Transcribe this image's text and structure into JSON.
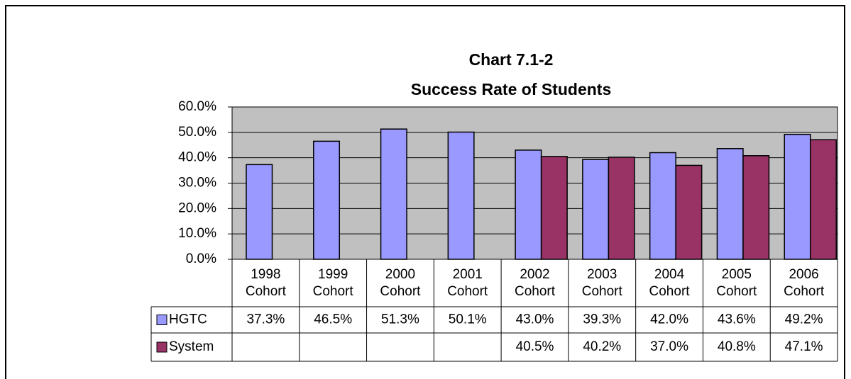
{
  "chart_data": {
    "type": "bar",
    "title": "Chart 7.1-2",
    "subtitle": "Success Rate of Students",
    "categories": [
      "1998 Cohort",
      "1999 Cohort",
      "2000 Cohort",
      "2001 Cohort",
      "2002 Cohort",
      "2003 Cohort",
      "2004 Cohort",
      "2005 Cohort",
      "2006 Cohort"
    ],
    "series": [
      {
        "name": "HGTC",
        "color": "#9999ff",
        "values": [
          37.3,
          46.5,
          51.3,
          50.1,
          43.0,
          39.3,
          42.0,
          43.6,
          49.2
        ],
        "value_labels": [
          "37.3%",
          "46.5%",
          "51.3%",
          "50.1%",
          "43.0%",
          "39.3%",
          "42.0%",
          "43.6%",
          "49.2%"
        ]
      },
      {
        "name": "System",
        "color": "#993366",
        "values": [
          null,
          null,
          null,
          null,
          40.5,
          40.2,
          37.0,
          40.8,
          47.1
        ],
        "value_labels": [
          null,
          null,
          null,
          null,
          "40.5%",
          "40.2%",
          "37.0%",
          "40.8%",
          "47.1%"
        ]
      }
    ],
    "ylim": [
      0,
      60
    ],
    "yticks": [
      {
        "value": 0,
        "label": "0.0%"
      },
      {
        "value": 10,
        "label": "10.0%"
      },
      {
        "value": 20,
        "label": "20.0%"
      },
      {
        "value": 30,
        "label": "30.0%"
      },
      {
        "value": 40,
        "label": "40.0%"
      },
      {
        "value": 50,
        "label": "50.0%"
      },
      {
        "value": 60,
        "label": "60.0%"
      }
    ],
    "grid": true,
    "plot_background": "#c0c0c0"
  }
}
